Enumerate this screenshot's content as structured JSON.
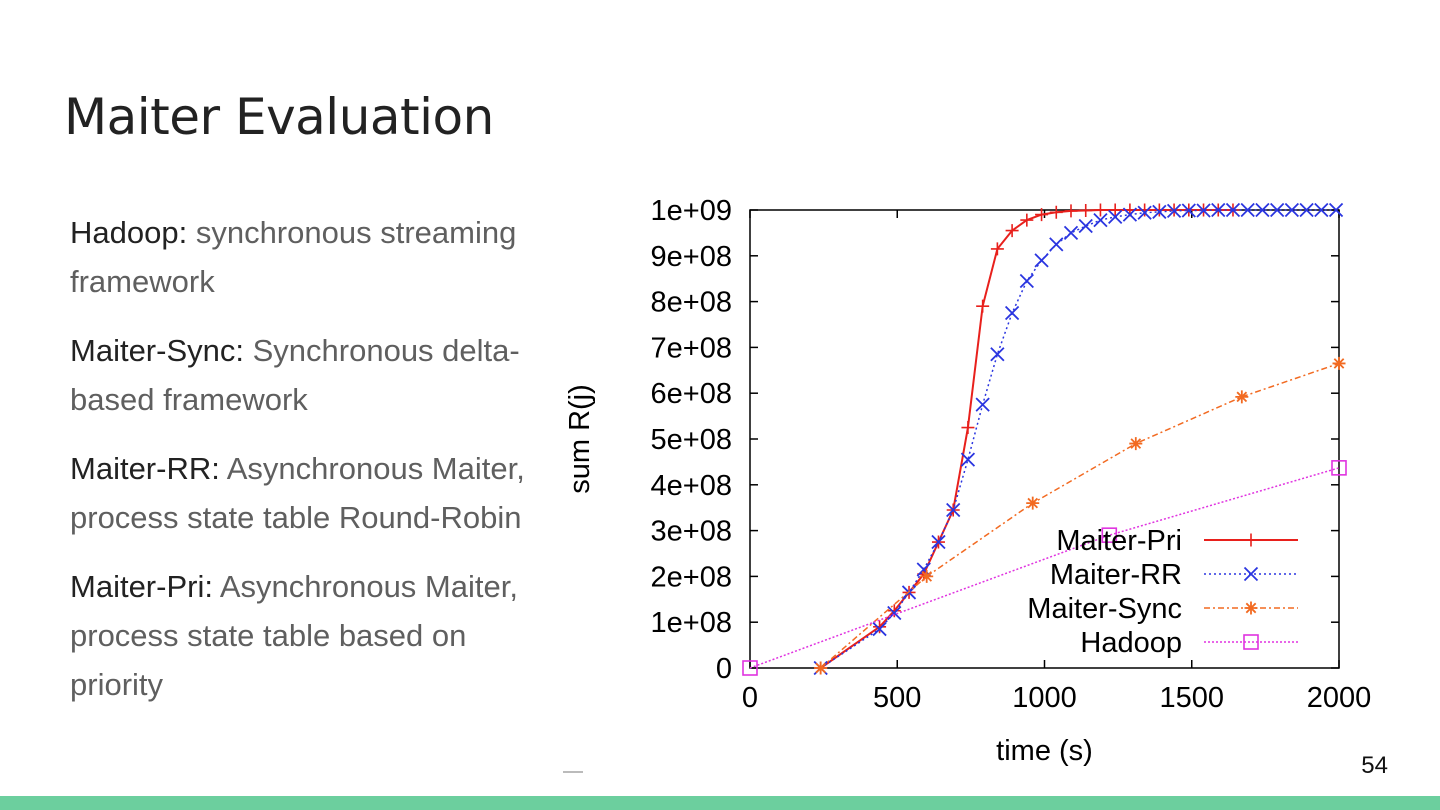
{
  "slide": {
    "title": "Maiter Evaluation",
    "page_number": "54",
    "footer_color": "#6ccf9e"
  },
  "bullets": [
    {
      "term": "Hadoop",
      "sep": ": ",
      "desc": "synchronous streaming framework"
    },
    {
      "term": "Maiter-Sync",
      "sep": ": ",
      "desc": "Synchronous delta-based framework"
    },
    {
      "term": "Maiter-RR",
      "sep": ": ",
      "desc": "Asynchronous Maiter, process state table Round-Robin"
    },
    {
      "term": "Maiter-Pri",
      "sep": ": ",
      "desc": "Asynchronous Maiter, process state table based on priority"
    }
  ],
  "chart_data": {
    "type": "line",
    "xlabel": "time (s)",
    "ylabel": "sum R(j)",
    "xlim": [
      0,
      2000
    ],
    "ylim": [
      0,
      1000000000
    ],
    "x_ticks": [
      0,
      500,
      1000,
      1500,
      2000
    ],
    "x_tick_labels": [
      "0",
      "500",
      "1000",
      "1500",
      "2000"
    ],
    "y_ticks": [
      0,
      100000000,
      200000000,
      300000000,
      400000000,
      500000000,
      600000000,
      700000000,
      800000000,
      900000000,
      1000000000
    ],
    "y_tick_labels": [
      "0",
      "1e+08",
      "2e+08",
      "3e+08",
      "4e+08",
      "5e+08",
      "6e+08",
      "7e+08",
      "8e+08",
      "9e+08",
      "1e+09"
    ],
    "grid": false,
    "legend_position": "bottom-right",
    "series": [
      {
        "name": "Maiter-Pri",
        "color": "#e8201c",
        "marker": "plus",
        "dash": "",
        "points": [
          [
            240,
            0
          ],
          [
            440,
            90000000
          ],
          [
            490,
            125000000
          ],
          [
            540,
            165000000
          ],
          [
            590,
            205000000
          ],
          [
            640,
            275000000
          ],
          [
            690,
            345000000
          ],
          [
            740,
            525000000
          ],
          [
            790,
            790000000
          ],
          [
            840,
            915000000
          ],
          [
            890,
            955000000
          ],
          [
            940,
            978000000
          ],
          [
            990,
            990000000
          ],
          [
            1040,
            995000000
          ],
          [
            1090,
            998000000
          ],
          [
            1140,
            999000000
          ],
          [
            1190,
            1000000000
          ],
          [
            1240,
            1000000000
          ],
          [
            1290,
            1000000000
          ],
          [
            1340,
            1000000000
          ],
          [
            1390,
            1000000000
          ],
          [
            1440,
            1000000000
          ],
          [
            1490,
            1000000000
          ],
          [
            1540,
            1000000000
          ],
          [
            1590,
            1000000000
          ],
          [
            1640,
            1000000000
          ]
        ]
      },
      {
        "name": "Maiter-RR",
        "color": "#2a35e0",
        "marker": "cross",
        "dash": "2,3",
        "points": [
          [
            240,
            0
          ],
          [
            440,
            85000000
          ],
          [
            490,
            120000000
          ],
          [
            540,
            165000000
          ],
          [
            590,
            215000000
          ],
          [
            640,
            275000000
          ],
          [
            690,
            345000000
          ],
          [
            740,
            455000000
          ],
          [
            790,
            575000000
          ],
          [
            840,
            685000000
          ],
          [
            890,
            775000000
          ],
          [
            940,
            845000000
          ],
          [
            990,
            890000000
          ],
          [
            1040,
            925000000
          ],
          [
            1090,
            950000000
          ],
          [
            1140,
            965000000
          ],
          [
            1190,
            978000000
          ],
          [
            1240,
            985000000
          ],
          [
            1290,
            990000000
          ],
          [
            1340,
            994000000
          ],
          [
            1390,
            996000000
          ],
          [
            1440,
            998000000
          ],
          [
            1490,
            999000000
          ],
          [
            1540,
            999000000
          ],
          [
            1590,
            1000000000
          ],
          [
            1640,
            1000000000
          ],
          [
            1690,
            1000000000
          ],
          [
            1740,
            1000000000
          ],
          [
            1790,
            1000000000
          ],
          [
            1840,
            1000000000
          ],
          [
            1890,
            1000000000
          ],
          [
            1940,
            1000000000
          ],
          [
            1990,
            1000000000
          ]
        ]
      },
      {
        "name": "Maiter-Sync",
        "color": "#f26a21",
        "marker": "star",
        "dash": "6,3,2,3",
        "points": [
          [
            240,
            0
          ],
          [
            600,
            200000000
          ],
          [
            960,
            360000000
          ],
          [
            1310,
            490000000
          ],
          [
            1670,
            592000000
          ],
          [
            2000,
            665000000
          ]
        ]
      },
      {
        "name": "Hadoop",
        "color": "#e033e0",
        "marker": "square",
        "dash": "2,2",
        "points": [
          [
            0,
            0
          ],
          [
            1220,
            290000000
          ],
          [
            2000,
            437000000
          ]
        ]
      }
    ]
  }
}
